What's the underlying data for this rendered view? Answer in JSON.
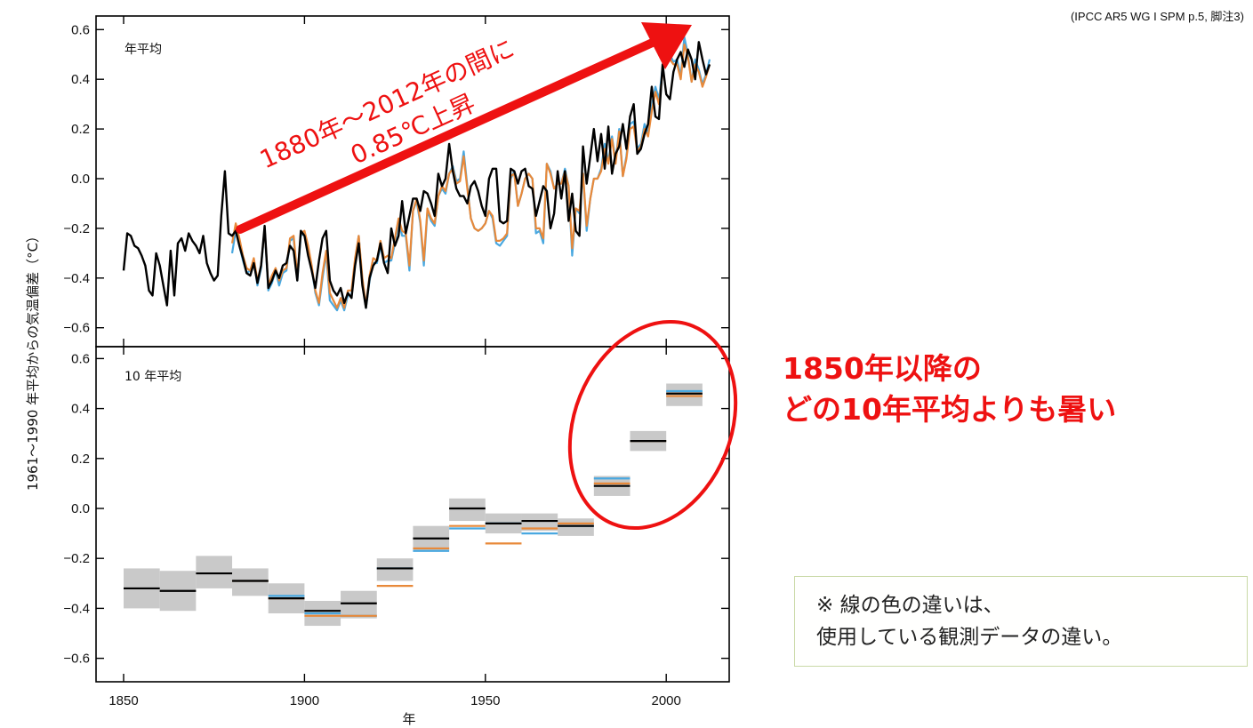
{
  "citation": "(IPCC AR5 WG I  SPM p.5, 脚注3)",
  "annotation": {
    "arrow_line1": "1880年～2012年の間に",
    "arrow_line2": "0.85℃上昇",
    "highlight_line1": "1850年以降の",
    "highlight_line2": "どの10年平均よりも暑い",
    "note_line1": "※ 線の色の違いは、",
    "note_line2": "使用している観測データの違い。",
    "color": "#ee1111"
  },
  "colors": {
    "black_series": "#000000",
    "orange_series": "#e8893a",
    "blue_series": "#49a8e0",
    "uncertainty_band": "#c9c9c9"
  },
  "chart_data": [
    {
      "type": "line",
      "panel_label": "年平均",
      "ylabel": "1961～1990 年平均からの気温偏差（°C）",
      "xlabel": "",
      "xlim": [
        1850,
        2012
      ],
      "ylim": [
        -0.68,
        0.64
      ],
      "yticks": [
        -0.6,
        -0.4,
        -0.2,
        0.0,
        0.2,
        0.4,
        0.6
      ],
      "ytick_labels": [
        "−0.6",
        "−0.4",
        "−0.2",
        "0.0",
        "0.2",
        "0.4",
        "0.6"
      ],
      "series": [
        {
          "color": "#000000",
          "x_start": 1850,
          "values": [
            -0.37,
            -0.22,
            -0.23,
            -0.27,
            -0.28,
            -0.31,
            -0.35,
            -0.45,
            -0.47,
            -0.3,
            -0.35,
            -0.43,
            -0.51,
            -0.29,
            -0.47,
            -0.26,
            -0.24,
            -0.29,
            -0.22,
            -0.25,
            -0.27,
            -0.3,
            -0.23,
            -0.34,
            -0.38,
            -0.41,
            -0.39,
            -0.15,
            0.03,
            -0.22,
            -0.23,
            -0.21,
            -0.27,
            -0.32,
            -0.38,
            -0.39,
            -0.34,
            -0.42,
            -0.35,
            -0.19,
            -0.44,
            -0.41,
            -0.37,
            -0.4,
            -0.35,
            -0.34,
            -0.27,
            -0.29,
            -0.41,
            -0.21,
            -0.23,
            -0.31,
            -0.37,
            -0.44,
            -0.33,
            -0.24,
            -0.21,
            -0.41,
            -0.45,
            -0.47,
            -0.44,
            -0.5,
            -0.46,
            -0.48,
            -0.35,
            -0.26,
            -0.43,
            -0.52,
            -0.4,
            -0.35,
            -0.33,
            -0.26,
            -0.34,
            -0.38,
            -0.2,
            -0.27,
            -0.23,
            -0.09,
            -0.22,
            -0.15,
            -0.08,
            -0.08,
            -0.13,
            -0.05,
            -0.06,
            -0.1,
            -0.15,
            0.02,
            -0.03,
            0.0,
            0.14,
            0.03,
            -0.04,
            -0.07,
            -0.07,
            -0.1,
            -0.03,
            -0.01,
            -0.05,
            -0.11,
            -0.15,
            0.0,
            0.04,
            0.04,
            -0.17,
            -0.18,
            -0.17,
            0.04,
            0.03,
            -0.02,
            0.03,
            0.04,
            -0.03,
            -0.04,
            -0.15,
            -0.09,
            -0.03,
            -0.05,
            -0.2,
            -0.14,
            0.03,
            -0.08,
            0.03,
            -0.17,
            -0.06,
            -0.21,
            -0.23,
            0.13,
            -0.02,
            0.09,
            0.2,
            0.07,
            0.18,
            0.04,
            0.21,
            0.02,
            0.1,
            0.13,
            0.22,
            0.12,
            0.25,
            0.3,
            0.1,
            0.12,
            0.18,
            0.22,
            0.37,
            0.25,
            0.24,
            0.46,
            0.34,
            0.32,
            0.43,
            0.48,
            0.51,
            0.45,
            0.52,
            0.48,
            0.4,
            0.55,
            0.48,
            0.42,
            0.46
          ]
        },
        {
          "color": "#49a8e0",
          "x_start": 1880,
          "values": [
            -0.3,
            -0.21,
            -0.27,
            -0.33,
            -0.38,
            -0.37,
            -0.33,
            -0.43,
            -0.36,
            -0.2,
            -0.45,
            -0.42,
            -0.37,
            -0.43,
            -0.38,
            -0.37,
            -0.25,
            -0.24,
            -0.41,
            -0.23,
            -0.22,
            -0.28,
            -0.36,
            -0.46,
            -0.51,
            -0.4,
            -0.3,
            -0.49,
            -0.51,
            -0.53,
            -0.49,
            -0.53,
            -0.47,
            -0.47,
            -0.33,
            -0.23,
            -0.42,
            -0.52,
            -0.41,
            -0.34,
            -0.34,
            -0.27,
            -0.34,
            -0.33,
            -0.33,
            -0.26,
            -0.17,
            -0.23,
            -0.23,
            -0.37,
            -0.13,
            -0.09,
            -0.18,
            -0.35,
            -0.13,
            -0.17,
            -0.19,
            -0.07,
            -0.04,
            -0.06,
            0.02,
            0.05,
            -0.01,
            0.0,
            0.11,
            -0.03,
            -0.16,
            -0.2,
            -0.21,
            -0.2,
            -0.18,
            -0.13,
            -0.16,
            -0.26,
            -0.27,
            -0.25,
            -0.23,
            0.0,
            0.03,
            -0.11,
            -0.06,
            0.0,
            0.02,
            0.0,
            -0.22,
            -0.21,
            -0.26,
            0.06,
            0.03,
            -0.04,
            -0.02,
            -0.02,
            0.04,
            -0.03,
            -0.31,
            -0.12,
            -0.14,
            0.02,
            -0.21,
            -0.08,
            0.0,
            0.0,
            0.04,
            0.14,
            0.07,
            0.17,
            0.07,
            0.2,
            0.01,
            0.09,
            0.22,
            0.23,
            0.12,
            0.14,
            0.22,
            0.18,
            0.29,
            0.37,
            0.32,
            0.45,
            0.52,
            0.5,
            0.47,
            0.48,
            0.41,
            0.57,
            0.5,
            0.39,
            0.48,
            0.44,
            0.38,
            0.42,
            0.48
          ]
        },
        {
          "color": "#e8893a",
          "x_start": 1880,
          "values": [
            -0.26,
            -0.18,
            -0.24,
            -0.31,
            -0.36,
            -0.37,
            -0.32,
            -0.41,
            -0.35,
            -0.2,
            -0.43,
            -0.39,
            -0.36,
            -0.41,
            -0.37,
            -0.36,
            -0.24,
            -0.23,
            -0.39,
            -0.22,
            -0.21,
            -0.27,
            -0.35,
            -0.45,
            -0.5,
            -0.38,
            -0.29,
            -0.46,
            -0.49,
            -0.52,
            -0.48,
            -0.52,
            -0.45,
            -0.45,
            -0.32,
            -0.23,
            -0.4,
            -0.51,
            -0.39,
            -0.32,
            -0.33,
            -0.25,
            -0.32,
            -0.31,
            -0.32,
            -0.24,
            -0.16,
            -0.21,
            -0.22,
            -0.35,
            -0.13,
            -0.08,
            -0.17,
            -0.33,
            -0.12,
            -0.16,
            -0.18,
            -0.07,
            -0.03,
            -0.05,
            0.02,
            0.04,
            -0.02,
            -0.01,
            0.09,
            -0.04,
            -0.16,
            -0.2,
            -0.21,
            -0.2,
            -0.18,
            -0.13,
            -0.15,
            -0.25,
            -0.25,
            -0.24,
            -0.22,
            0.01,
            0.02,
            -0.11,
            -0.06,
            0.0,
            0.02,
            0.0,
            -0.2,
            -0.2,
            -0.24,
            0.06,
            0.02,
            -0.04,
            -0.02,
            -0.02,
            0.03,
            -0.03,
            -0.28,
            -0.12,
            -0.13,
            0.02,
            -0.19,
            -0.08,
            0.0,
            0.0,
            0.03,
            0.12,
            0.06,
            0.16,
            0.06,
            0.19,
            0.01,
            0.08,
            0.2,
            0.21,
            0.11,
            0.13,
            0.2,
            0.17,
            0.27,
            0.35,
            0.3,
            0.43,
            0.5,
            0.48,
            0.46,
            0.46,
            0.4,
            0.54,
            0.49,
            0.39,
            0.46,
            0.43,
            0.37,
            0.41,
            0.46
          ]
        }
      ]
    },
    {
      "type": "bar",
      "panel_label": "10 年平均",
      "xlabel": "年",
      "ylabel": "",
      "xlim": [
        1850,
        2012
      ],
      "ylim": [
        -0.68,
        0.64
      ],
      "xticks": [
        1850,
        1900,
        1950,
        2000
      ],
      "xtick_labels": [
        "1850",
        "1900",
        "1950",
        "2000"
      ],
      "yticks": [
        -0.6,
        -0.4,
        -0.2,
        0.0,
        0.2,
        0.4,
        0.6
      ],
      "ytick_labels": [
        "−0.6",
        "−0.4",
        "−0.2",
        "0.0",
        "0.2",
        "0.4",
        "0.6"
      ],
      "decades": [
        {
          "start": 1850,
          "end": 1860,
          "black": -0.32,
          "band": [
            -0.4,
            -0.24
          ]
        },
        {
          "start": 1860,
          "end": 1870,
          "black": -0.33,
          "band": [
            -0.41,
            -0.25
          ]
        },
        {
          "start": 1870,
          "end": 1880,
          "black": -0.26,
          "band": [
            -0.32,
            -0.19
          ]
        },
        {
          "start": 1880,
          "end": 1890,
          "black": -0.29,
          "orange": -0.29,
          "blue": -0.29,
          "band": [
            -0.35,
            -0.24
          ]
        },
        {
          "start": 1890,
          "end": 1900,
          "black": -0.36,
          "orange": -0.36,
          "blue": -0.35,
          "band": [
            -0.42,
            -0.3
          ]
        },
        {
          "start": 1900,
          "end": 1910,
          "black": -0.41,
          "orange": -0.43,
          "blue": -0.42,
          "band": [
            -0.47,
            -0.37
          ]
        },
        {
          "start": 1910,
          "end": 1920,
          "black": -0.38,
          "orange": -0.43,
          "blue": -0.43,
          "band": [
            -0.44,
            -0.33
          ]
        },
        {
          "start": 1920,
          "end": 1930,
          "black": -0.24,
          "orange": -0.31,
          "blue": -0.24,
          "band": [
            -0.29,
            -0.2
          ]
        },
        {
          "start": 1930,
          "end": 1940,
          "black": -0.12,
          "orange": -0.16,
          "blue": -0.17,
          "band": [
            -0.17,
            -0.07
          ]
        },
        {
          "start": 1940,
          "end": 1950,
          "black": 0.0,
          "orange": -0.07,
          "blue": -0.08,
          "band": [
            -0.05,
            0.04
          ]
        },
        {
          "start": 1950,
          "end": 1960,
          "black": -0.06,
          "orange": -0.14,
          "blue": -0.06,
          "band": [
            -0.1,
            -0.02
          ]
        },
        {
          "start": 1960,
          "end": 1970,
          "black": -0.05,
          "orange": -0.08,
          "blue": -0.1,
          "band": [
            -0.09,
            -0.02
          ]
        },
        {
          "start": 1970,
          "end": 1980,
          "black": -0.07,
          "orange": -0.06,
          "blue": -0.07,
          "band": [
            -0.11,
            -0.04
          ]
        },
        {
          "start": 1980,
          "end": 1990,
          "black": 0.09,
          "orange": 0.1,
          "blue": 0.12,
          "band": [
            0.05,
            0.13
          ]
        },
        {
          "start": 1990,
          "end": 2000,
          "black": 0.27,
          "orange": 0.27,
          "blue": 0.27,
          "band": [
            0.23,
            0.31
          ]
        },
        {
          "start": 2000,
          "end": 2010,
          "black": 0.46,
          "orange": 0.45,
          "blue": 0.47,
          "band": [
            0.41,
            0.5
          ]
        }
      ]
    }
  ]
}
